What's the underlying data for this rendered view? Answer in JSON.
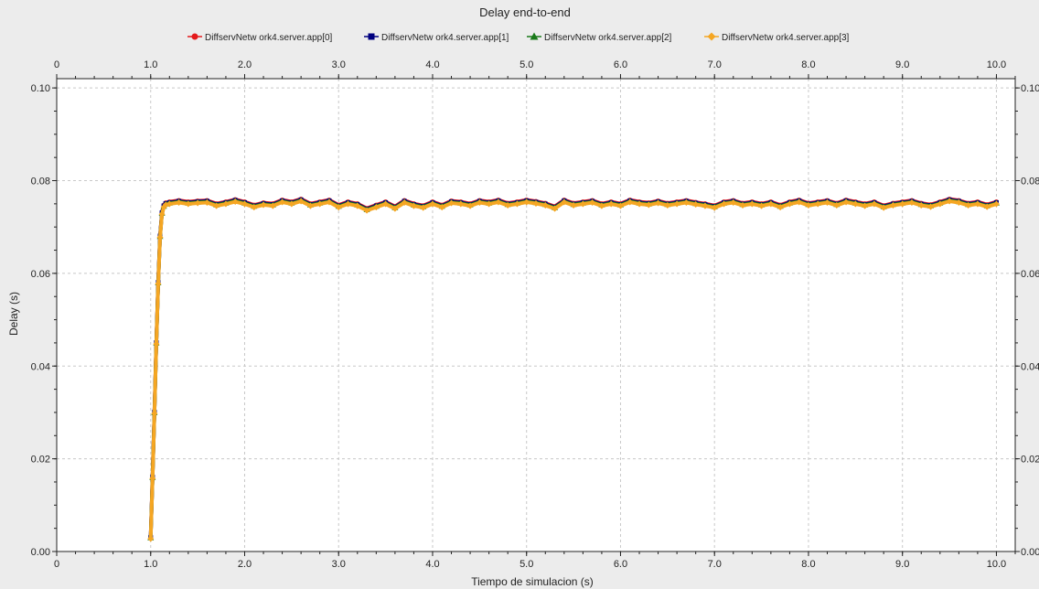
{
  "chart_data": {
    "type": "line",
    "title": "Delay end-to-end",
    "xlabel": "Tiempo de simulacion (s)",
    "ylabel": "Delay (s)",
    "xlim": [
      0,
      10.2
    ],
    "ylim": [
      0,
      0.102
    ],
    "x_ticks": [
      0,
      1,
      2,
      3,
      4,
      5,
      6,
      7,
      8,
      9,
      10
    ],
    "x_tick_labels": [
      "0",
      "1.0",
      "2.0",
      "3.0",
      "4.0",
      "5.0",
      "6.0",
      "7.0",
      "8.0",
      "9.0",
      "10.0"
    ],
    "y_ticks": [
      0,
      0.02,
      0.04,
      0.06,
      0.08,
      0.1
    ],
    "y_tick_labels": [
      "0.00",
      "0.02",
      "0.04",
      "0.06",
      "0.08",
      "0.10"
    ],
    "y_tick_labels_right": [
      "0.00",
      "0.02",
      "0.04",
      "0.06",
      "0.08",
      "0.10"
    ],
    "grid": true,
    "legend_position": "top",
    "x": [
      1.0,
      1.02,
      1.04,
      1.06,
      1.08,
      1.1,
      1.12,
      1.14,
      1.16,
      1.2,
      1.3,
      1.4,
      1.5,
      1.6,
      1.7,
      1.8,
      1.9,
      2.0,
      2.1,
      2.2,
      2.3,
      2.4,
      2.5,
      2.6,
      2.7,
      2.8,
      2.9,
      3.0,
      3.1,
      3.2,
      3.3,
      3.4,
      3.5,
      3.6,
      3.7,
      3.8,
      3.9,
      4.0,
      4.1,
      4.2,
      4.3,
      4.4,
      4.5,
      4.6,
      4.7,
      4.8,
      4.9,
      5.0,
      5.1,
      5.2,
      5.3,
      5.4,
      5.5,
      5.6,
      5.7,
      5.8,
      5.9,
      6.0,
      6.1,
      6.2,
      6.3,
      6.4,
      6.5,
      6.6,
      6.7,
      6.8,
      6.9,
      7.0,
      7.1,
      7.2,
      7.3,
      7.4,
      7.5,
      7.6,
      7.7,
      7.8,
      7.9,
      8.0,
      8.1,
      8.2,
      8.3,
      8.4,
      8.5,
      8.6,
      8.7,
      8.8,
      8.9,
      9.0,
      9.1,
      9.2,
      9.3,
      9.4,
      9.5,
      9.6,
      9.7,
      9.8,
      9.9,
      10.0
    ],
    "series": [
      {
        "name": "DiffservNetw ork4.server.app[0]",
        "color": "#e41a1c",
        "marker": "circle",
        "values": [
          0.003,
          0.016,
          0.03,
          0.045,
          0.058,
          0.068,
          0.073,
          0.0745,
          0.075,
          0.0752,
          0.0755,
          0.0752,
          0.0754,
          0.0755,
          0.0748,
          0.0752,
          0.0757,
          0.0752,
          0.0745,
          0.075,
          0.0748,
          0.0756,
          0.0752,
          0.0758,
          0.0748,
          0.0752,
          0.0756,
          0.0745,
          0.0752,
          0.0748,
          0.0738,
          0.0745,
          0.0752,
          0.0742,
          0.0755,
          0.0748,
          0.0744,
          0.0752,
          0.0745,
          0.0754,
          0.0752,
          0.0748,
          0.0755,
          0.0752,
          0.0756,
          0.0749,
          0.0752,
          0.0756,
          0.0753,
          0.0749,
          0.0742,
          0.0756,
          0.0749,
          0.0752,
          0.0755,
          0.0748,
          0.0752,
          0.0748,
          0.0756,
          0.0752,
          0.075,
          0.0754,
          0.0749,
          0.0752,
          0.0755,
          0.0751,
          0.0748,
          0.0744,
          0.0752,
          0.0755,
          0.0749,
          0.0752,
          0.0748,
          0.0752,
          0.0745,
          0.0752,
          0.0756,
          0.0749,
          0.0752,
          0.0755,
          0.0749,
          0.0756,
          0.0752,
          0.0748,
          0.0752,
          0.0744,
          0.0749,
          0.0752,
          0.0755,
          0.0749,
          0.0746,
          0.0752,
          0.0758,
          0.0755,
          0.0749,
          0.0752,
          0.0746,
          0.0752
        ]
      },
      {
        "name": "DiffservNetw ork4.server.app[1]",
        "color": "#00007f",
        "marker": "square",
        "values": [
          0.003,
          0.016,
          0.03,
          0.045,
          0.058,
          0.068,
          0.073,
          0.0745,
          0.075,
          0.0752,
          0.0755,
          0.0752,
          0.0754,
          0.0755,
          0.0748,
          0.0752,
          0.0757,
          0.0752,
          0.0745,
          0.075,
          0.0748,
          0.0756,
          0.0752,
          0.0758,
          0.0748,
          0.0752,
          0.0756,
          0.0745,
          0.0752,
          0.0748,
          0.0738,
          0.0745,
          0.0752,
          0.0742,
          0.0755,
          0.0748,
          0.0744,
          0.0752,
          0.0745,
          0.0754,
          0.0752,
          0.0748,
          0.0755,
          0.0752,
          0.0756,
          0.0749,
          0.0752,
          0.0756,
          0.0753,
          0.0749,
          0.0742,
          0.0756,
          0.0749,
          0.0752,
          0.0755,
          0.0748,
          0.0752,
          0.0748,
          0.0756,
          0.0752,
          0.075,
          0.0754,
          0.0749,
          0.0752,
          0.0755,
          0.0751,
          0.0748,
          0.0744,
          0.0752,
          0.0755,
          0.0749,
          0.0752,
          0.0748,
          0.0752,
          0.0745,
          0.0752,
          0.0756,
          0.0749,
          0.0752,
          0.0755,
          0.0749,
          0.0756,
          0.0752,
          0.0748,
          0.0752,
          0.0744,
          0.0749,
          0.0752,
          0.0755,
          0.0749,
          0.0746,
          0.0752,
          0.0758,
          0.0755,
          0.0749,
          0.0752,
          0.0746,
          0.0752
        ]
      },
      {
        "name": "DiffservNetw ork4.server.app[2]",
        "color": "#1a7a1a",
        "marker": "triangle",
        "values": [
          0.003,
          0.016,
          0.03,
          0.045,
          0.058,
          0.068,
          0.073,
          0.0745,
          0.075,
          0.0752,
          0.0755,
          0.0752,
          0.0754,
          0.0755,
          0.0748,
          0.0752,
          0.0757,
          0.0752,
          0.0745,
          0.075,
          0.0748,
          0.0756,
          0.0752,
          0.0758,
          0.0748,
          0.0752,
          0.0756,
          0.0745,
          0.0752,
          0.0748,
          0.0738,
          0.0745,
          0.0752,
          0.0742,
          0.0755,
          0.0748,
          0.0744,
          0.0752,
          0.0745,
          0.0754,
          0.0752,
          0.0748,
          0.0755,
          0.0752,
          0.0756,
          0.0749,
          0.0752,
          0.0756,
          0.0753,
          0.0749,
          0.0742,
          0.0756,
          0.0749,
          0.0752,
          0.0755,
          0.0748,
          0.0752,
          0.0748,
          0.0756,
          0.0752,
          0.075,
          0.0754,
          0.0749,
          0.0752,
          0.0755,
          0.0751,
          0.0748,
          0.0744,
          0.0752,
          0.0755,
          0.0749,
          0.0752,
          0.0748,
          0.0752,
          0.0745,
          0.0752,
          0.0756,
          0.0749,
          0.0752,
          0.0755,
          0.0749,
          0.0756,
          0.0752,
          0.0748,
          0.0752,
          0.0744,
          0.0749,
          0.0752,
          0.0755,
          0.0749,
          0.0746,
          0.0752,
          0.0758,
          0.0755,
          0.0749,
          0.0752,
          0.0746,
          0.0752
        ]
      },
      {
        "name": "DiffservNetw ork4.server.app[3]",
        "color": "#f5a623",
        "marker": "diamond",
        "values": [
          0.003,
          0.016,
          0.03,
          0.045,
          0.058,
          0.068,
          0.073,
          0.0745,
          0.075,
          0.0752,
          0.0755,
          0.0752,
          0.0754,
          0.0755,
          0.0748,
          0.0752,
          0.0757,
          0.0752,
          0.0745,
          0.075,
          0.0748,
          0.0756,
          0.0752,
          0.0758,
          0.0748,
          0.0752,
          0.0756,
          0.0745,
          0.0752,
          0.0748,
          0.0738,
          0.0745,
          0.0752,
          0.0742,
          0.0755,
          0.0748,
          0.0744,
          0.0752,
          0.0745,
          0.0754,
          0.0752,
          0.0748,
          0.0755,
          0.0752,
          0.0756,
          0.0749,
          0.0752,
          0.0756,
          0.0753,
          0.0749,
          0.0742,
          0.0756,
          0.0749,
          0.0752,
          0.0755,
          0.0748,
          0.0752,
          0.0748,
          0.0756,
          0.0752,
          0.075,
          0.0754,
          0.0749,
          0.0752,
          0.0755,
          0.0751,
          0.0748,
          0.0744,
          0.0752,
          0.0755,
          0.0749,
          0.0752,
          0.0748,
          0.0752,
          0.0745,
          0.0752,
          0.0756,
          0.0749,
          0.0752,
          0.0755,
          0.0749,
          0.0756,
          0.0752,
          0.0748,
          0.0752,
          0.0744,
          0.0749,
          0.0752,
          0.0755,
          0.0749,
          0.0746,
          0.0752,
          0.0758,
          0.0755,
          0.0749,
          0.0752,
          0.0746,
          0.0752
        ]
      }
    ]
  }
}
